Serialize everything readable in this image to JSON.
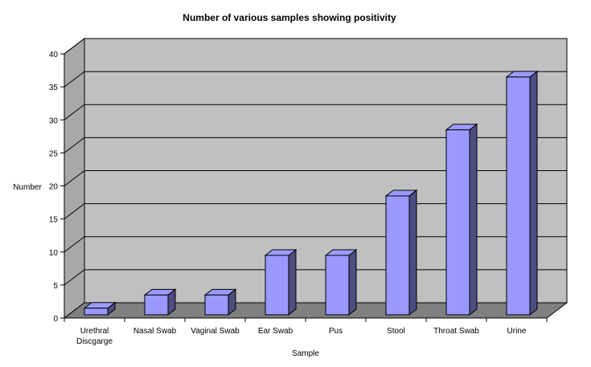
{
  "chart_data": {
    "type": "bar",
    "title": "Number of various samples showing positivity",
    "xlabel": "Sample",
    "ylabel": "Number",
    "categories": [
      "Urethral Discgarge",
      "Nasal Swab",
      "Vaginal Swab",
      "Ear Swab",
      "Pus",
      "Stool",
      "Throat Swab",
      "Urine"
    ],
    "category_lines": [
      [
        "Urethral",
        "Discgarge"
      ],
      [
        "Nasal Swab"
      ],
      [
        "Vaginal Swab"
      ],
      [
        "Ear Swab"
      ],
      [
        "Pus"
      ],
      [
        "Stool"
      ],
      [
        "Throat Swab"
      ],
      [
        "Urine"
      ]
    ],
    "values": [
      1,
      3,
      3,
      9,
      9,
      18,
      28,
      36
    ],
    "ylim": [
      0,
      40
    ],
    "yticks": [
      0,
      5,
      10,
      15,
      20,
      25,
      30,
      35,
      40
    ],
    "grid": true,
    "legend": "none",
    "style": "3d-column"
  },
  "colors": {
    "wall": "#c0c0c0",
    "side_wall": "#a8a8a8",
    "floor": "#808080",
    "bar_front": "#9999ff",
    "bar_top": "#9b9bff",
    "bar_side": "#4d4d80",
    "grid": "#000000"
  }
}
